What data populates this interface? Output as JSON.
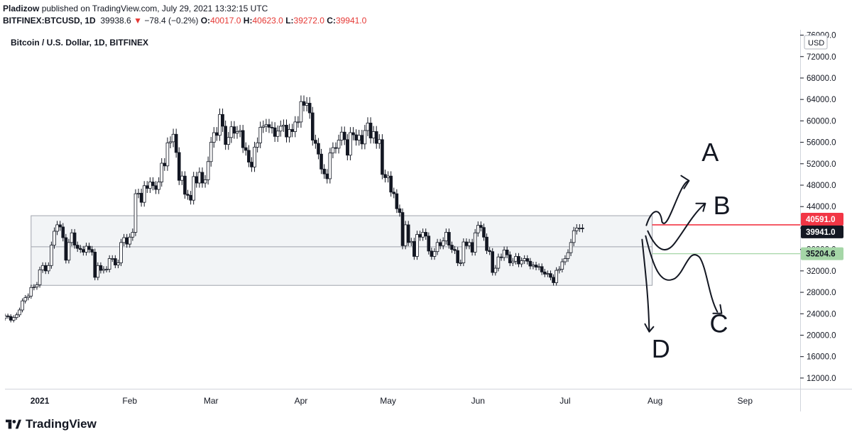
{
  "header": {
    "publisher": "Pladizow",
    "published_text": "published on TradingView.com, July 29, 2021 13:32:15 UTC",
    "symbol": "BITFINEX:BTCUSD, 1D",
    "price": "39938.6",
    "change_arrow": "▼",
    "change": "−78.4 (−0.2%)",
    "o_label": "O:",
    "o_value": "40017.0",
    "h_label": "H:",
    "h_value": "40623.0",
    "l_label": "L:",
    "l_value": "39272.0",
    "c_label": "C:",
    "c_value": "39941.0"
  },
  "footer": {
    "logo_text": "TradingView"
  },
  "chart_data": {
    "type": "candlestick",
    "title": "Bitcoin / U.S. Dollar, 1D, BITFINEX",
    "currency_badge": "USD",
    "y_ticks": [
      "76000.0",
      "72000.0",
      "68000.0",
      "64000.0",
      "60000.0",
      "56000.0",
      "52000.0",
      "48000.0",
      "44000.0",
      "36000.0",
      "32000.0",
      "28000.0",
      "24000.0",
      "20000.0",
      "16000.0",
      "12000.0"
    ],
    "y_range": [
      10000,
      77000
    ],
    "x_range_dates": [
      "2020-12-20",
      "2021-09-20"
    ],
    "x_ticks": [
      {
        "label": "2021",
        "date": "2021-01-01"
      },
      {
        "label": "Feb",
        "date": "2021-02-01"
      },
      {
        "label": "Mar",
        "date": "2021-03-01"
      },
      {
        "label": "Apr",
        "date": "2021-04-01"
      },
      {
        "label": "May",
        "date": "2021-05-01"
      },
      {
        "label": "Jun",
        "date": "2021-06-01"
      },
      {
        "label": "Jul",
        "date": "2021-07-01"
      },
      {
        "label": "Aug",
        "date": "2021-08-01"
      },
      {
        "label": "Sep",
        "date": "2021-09-01"
      }
    ],
    "start_date": "2020-12-20",
    "closes": [
      23600,
      23500,
      22800,
      23300,
      23800,
      24700,
      26400,
      27000,
      27300,
      28900,
      29000,
      29400,
      32200,
      33000,
      32000,
      33000,
      36800,
      39400,
      40600,
      40200,
      38200,
      34000,
      37300,
      39100,
      36800,
      36200,
      36000,
      35500,
      36600,
      36000,
      35500,
      30800,
      33000,
      32100,
      32300,
      32300,
      34300,
      34300,
      33100,
      33500,
      37300,
      38200,
      37000,
      38300,
      39200,
      46400,
      46500,
      44800,
      47900,
      47400,
      48600,
      47900,
      47200,
      48600,
      52100,
      51600,
      55900,
      56100,
      57500,
      54100,
      48900,
      49700,
      46300,
      46100,
      45200,
      49600,
      48400,
      50400,
      48400,
      49000,
      52400,
      56000,
      57800,
      57300,
      61200,
      59000,
      55600,
      56900,
      58900,
      57700,
      58000,
      58200,
      55000,
      54500,
      52300,
      51400,
      55100,
      55900,
      58800,
      59000,
      59300,
      58800,
      58700,
      57100,
      58100,
      59000,
      59200,
      57000,
      58400,
      58000,
      59800,
      59800,
      63600,
      62900,
      63300,
      61500,
      56400,
      55800,
      53800,
      51000,
      50100,
      49200,
      54000,
      55000,
      54900,
      56400,
      57900,
      56500,
      53600,
      57800,
      57400,
      56400,
      57300,
      55700,
      58200,
      59600,
      56800,
      58000,
      55800,
      56500,
      50000,
      49400,
      49700,
      46700,
      46400,
      43600,
      42900,
      36700,
      40600,
      37300,
      37500,
      34700,
      38800,
      38300,
      39200,
      38500,
      35700,
      34700,
      35600,
      37300,
      36700,
      37600,
      39200,
      36800,
      36000,
      35800,
      33500,
      33500,
      37400,
      36700,
      37300,
      35500,
      39100,
      40500,
      40100,
      38300,
      35800,
      35600,
      31700,
      32500,
      34600,
      34500,
      35900,
      35000,
      33500,
      33800,
      34700,
      33300,
      33900,
      34300,
      33800,
      32900,
      33100,
      32700,
      32800,
      31800,
      31400,
      31500,
      30800,
      29800,
      32100,
      32300,
      33700,
      34300,
      35400,
      37300,
      39500,
      40000,
      40000,
      39900
    ],
    "zone": {
      "top": 42300,
      "mid": 36500,
      "bottom": 29300,
      "start_date": "2020-12-29",
      "end_date": "2021-07-31"
    },
    "levels": [
      {
        "value": 40591.0,
        "label": "40591.0",
        "color": "#f23645",
        "draw_line": true
      },
      {
        "value": 39941.0,
        "label": "39941.0",
        "color": "#131722",
        "draw_line": false
      },
      {
        "value": 35204.6,
        "label": "35204.6",
        "color": "#a5d6a7",
        "draw_line": true
      }
    ],
    "hidden_tick_marks": [
      "40000.0",
      "36000.0"
    ],
    "annotations": [
      {
        "label": "A",
        "date": "2021-08-20",
        "value": 52500
      },
      {
        "label": "B",
        "date": "2021-08-24",
        "value": 42600
      },
      {
        "label": "C",
        "date": "2021-08-23",
        "value": 20500
      },
      {
        "label": "D",
        "date": "2021-08-03",
        "value": 15800
      }
    ]
  }
}
